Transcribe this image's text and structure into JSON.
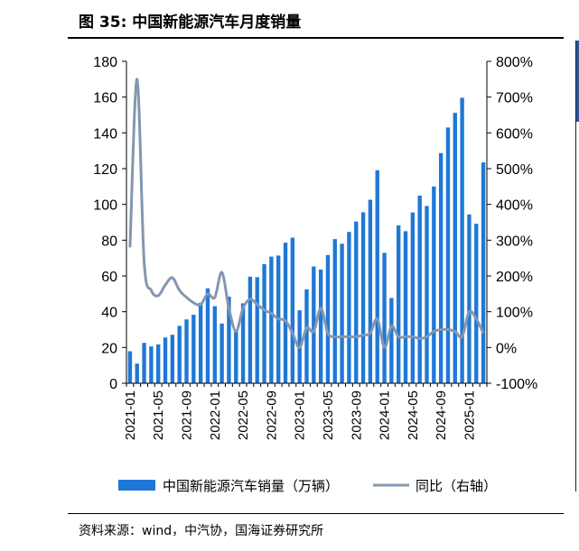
{
  "figure": {
    "title": "图 35:  中国新能源汽车月度销量",
    "source": "资料来源：wind，中汽协，国海证券研究所"
  },
  "colors": {
    "bar": "#1f78d6",
    "line": "#8497b0",
    "axis": "#000000"
  },
  "chart_data": {
    "type": "bar",
    "x_tick_labels": [
      "2021-01",
      "2021-05",
      "2021-09",
      "2022-01",
      "2022-05",
      "2022-09",
      "2023-01",
      "2023-05",
      "2023-09",
      "2024-01",
      "2024-05",
      "2024-09",
      "2025-01"
    ],
    "x_tick_index": [
      0,
      4,
      8,
      12,
      16,
      20,
      24,
      28,
      32,
      36,
      40,
      44,
      48
    ],
    "categories": [
      "2021-01",
      "2021-02",
      "2021-03",
      "2021-04",
      "2021-05",
      "2021-06",
      "2021-07",
      "2021-08",
      "2021-09",
      "2021-10",
      "2021-11",
      "2021-12",
      "2022-01",
      "2022-02",
      "2022-03",
      "2022-04",
      "2022-05",
      "2022-06",
      "2022-07",
      "2022-08",
      "2022-09",
      "2022-10",
      "2022-11",
      "2022-12",
      "2023-01",
      "2023-02",
      "2023-03",
      "2023-04",
      "2023-05",
      "2023-06",
      "2023-07",
      "2023-08",
      "2023-09",
      "2023-10",
      "2023-11",
      "2023-12",
      "2024-01",
      "2024-02",
      "2024-03",
      "2024-04",
      "2024-05",
      "2024-06",
      "2024-07",
      "2024-08",
      "2024-09",
      "2024-10",
      "2024-11",
      "2024-12",
      "2025-01",
      "2025-02",
      "2025-03"
    ],
    "series": [
      {
        "name": "中国新能源汽车销量（万辆）",
        "type": "bar",
        "axis": "left",
        "values": [
          17.9,
          11,
          22.6,
          20.6,
          21.7,
          25.6,
          27.1,
          32.1,
          35.7,
          38.3,
          45,
          53.1,
          43.1,
          33.4,
          48.4,
          29.9,
          44.7,
          59.6,
          59.3,
          66.6,
          70.8,
          71.4,
          78.6,
          81.4,
          40.8,
          52.5,
          65.3,
          63.6,
          71.7,
          80.6,
          78,
          84.6,
          90.4,
          95.6,
          102.6,
          119.1,
          72.9,
          47.7,
          88.3,
          85,
          95.5,
          104.9,
          99.1,
          110,
          128.7,
          143,
          151.2,
          159.6,
          94.4,
          89.2,
          123.5
        ]
      },
      {
        "name": "同比（右轴）",
        "type": "line",
        "axis": "right",
        "values": [
          280,
          750,
          240,
          160,
          145,
          175,
          195,
          160,
          140,
          125,
          120,
          150,
          140,
          210,
          110,
          45,
          110,
          135,
          120,
          105,
          95,
          80,
          75,
          40,
          0,
          55,
          45,
          110,
          40,
          30,
          30,
          30,
          30,
          35,
          40,
          80,
          0,
          60,
          30,
          30,
          30,
          25,
          30,
          45,
          50,
          50,
          45,
          30,
          100,
          80,
          40
        ]
      }
    ],
    "left_axis": {
      "min": 0,
      "max": 180,
      "step": 20,
      "ticks": [
        "0",
        "20",
        "40",
        "60",
        "80",
        "100",
        "120",
        "140",
        "160",
        "180"
      ]
    },
    "right_axis": {
      "min": -100,
      "max": 800,
      "step": 100,
      "ticks": [
        "-100%",
        "0%",
        "100%",
        "200%",
        "300%",
        "400%",
        "500%",
        "600%",
        "700%",
        "800%"
      ]
    },
    "legend": {
      "placement": "bottom",
      "items": [
        {
          "label": "中国新能源汽车销量（万辆）",
          "kind": "bar"
        },
        {
          "label": "同比（右轴）",
          "kind": "line"
        }
      ]
    },
    "grid": false
  }
}
